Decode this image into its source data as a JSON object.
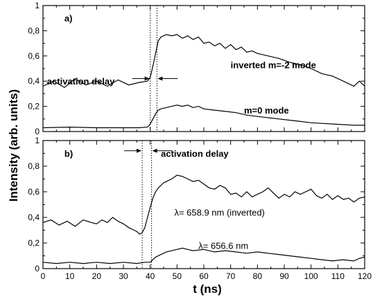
{
  "chart_data": [
    {
      "panel_label": "a)",
      "type": "line",
      "xlim": [
        0,
        120
      ],
      "ylim": [
        0,
        1
      ],
      "y_ticks": [
        0,
        0.2,
        0.4,
        0.6,
        0.8,
        1
      ],
      "y_tick_labels": [
        "0",
        "0,2",
        "0,4",
        "0,6",
        "0,8",
        "1"
      ],
      "vlines": [
        40,
        42.5
      ],
      "annotations": [
        {
          "text": "activation delay",
          "x": 1.5,
          "y": 0.4
        },
        {
          "text": "inverted m=-2 mode",
          "x": 70,
          "y": 0.53
        },
        {
          "text": "m=0 mode",
          "x": 75,
          "y": 0.17
        }
      ],
      "series": [
        {
          "label": "inverted m=-2 mode",
          "x": [
            0,
            4,
            8,
            12,
            16,
            20,
            24,
            28,
            32,
            36,
            39,
            40,
            41,
            42,
            43,
            44,
            46,
            48,
            50,
            52,
            54,
            56,
            58,
            60,
            62,
            64,
            66,
            68,
            70,
            72,
            74,
            76,
            78,
            80,
            84,
            88,
            92,
            96,
            100,
            104,
            108,
            112,
            116,
            118,
            120
          ],
          "y": [
            0.36,
            0.4,
            0.35,
            0.42,
            0.37,
            0.4,
            0.36,
            0.41,
            0.37,
            0.39,
            0.4,
            0.43,
            0.52,
            0.62,
            0.72,
            0.75,
            0.77,
            0.76,
            0.77,
            0.74,
            0.76,
            0.73,
            0.75,
            0.7,
            0.71,
            0.68,
            0.7,
            0.66,
            0.69,
            0.65,
            0.67,
            0.63,
            0.64,
            0.62,
            0.6,
            0.58,
            0.55,
            0.53,
            0.5,
            0.46,
            0.44,
            0.4,
            0.36,
            0.4,
            0.36
          ]
        },
        {
          "label": "m=0 mode",
          "x": [
            0,
            10,
            20,
            30,
            36,
            39,
            40,
            41,
            42,
            43,
            44,
            46,
            48,
            50,
            52,
            54,
            56,
            58,
            60,
            64,
            68,
            72,
            76,
            80,
            84,
            88,
            92,
            96,
            100,
            104,
            108,
            112,
            116,
            120
          ],
          "y": [
            0.03,
            0.035,
            0.03,
            0.03,
            0.03,
            0.035,
            0.06,
            0.1,
            0.14,
            0.17,
            0.18,
            0.19,
            0.2,
            0.21,
            0.2,
            0.21,
            0.19,
            0.2,
            0.18,
            0.17,
            0.16,
            0.15,
            0.13,
            0.12,
            0.11,
            0.1,
            0.09,
            0.08,
            0.07,
            0.065,
            0.06,
            0.055,
            0.05,
            0.05
          ]
        }
      ]
    },
    {
      "panel_label": "b)",
      "type": "line",
      "xlim": [
        0,
        120
      ],
      "ylim": [
        0,
        1
      ],
      "x_ticks": [
        0,
        10,
        20,
        30,
        40,
        50,
        60,
        70,
        80,
        90,
        100,
        110,
        120
      ],
      "y_ticks": [
        0,
        0.2,
        0.4,
        0.6,
        0.8,
        1
      ],
      "y_tick_labels": [
        "0",
        "0,2",
        "0,4",
        "0,6",
        "0,8",
        "1"
      ],
      "xlabel": "t (ns)",
      "vlines": [
        37,
        40.5
      ],
      "annotations": [
        {
          "text": "activation delay",
          "x": 44,
          "y": 0.9
        },
        {
          "text": "λ= 658.9 nm (inverted)",
          "x": 49,
          "y": 0.44
        },
        {
          "text": "λ= 656.6 nm",
          "x": 58,
          "y": 0.18
        }
      ],
      "series": [
        {
          "label": "λ= 658.9 nm (inverted)",
          "x": [
            0,
            3,
            6,
            9,
            12,
            15,
            18,
            20,
            22,
            24,
            26,
            28,
            30,
            32,
            34,
            35,
            36,
            37,
            38,
            39,
            40,
            41,
            42,
            43,
            44,
            45,
            46,
            48,
            50,
            52,
            54,
            56,
            58,
            60,
            62,
            64,
            66,
            68,
            70,
            72,
            74,
            76,
            78,
            80,
            82,
            84,
            86,
            88,
            90,
            92,
            94,
            96,
            98,
            100,
            102,
            104,
            106,
            108,
            110,
            112,
            114,
            116,
            118,
            120
          ],
          "y": [
            0.36,
            0.38,
            0.34,
            0.37,
            0.33,
            0.38,
            0.36,
            0.35,
            0.38,
            0.36,
            0.4,
            0.37,
            0.35,
            0.32,
            0.3,
            0.29,
            0.27,
            0.28,
            0.32,
            0.4,
            0.48,
            0.55,
            0.6,
            0.63,
            0.65,
            0.67,
            0.68,
            0.7,
            0.73,
            0.72,
            0.7,
            0.68,
            0.69,
            0.66,
            0.63,
            0.62,
            0.65,
            0.63,
            0.58,
            0.59,
            0.56,
            0.6,
            0.56,
            0.58,
            0.6,
            0.63,
            0.59,
            0.55,
            0.58,
            0.56,
            0.6,
            0.58,
            0.6,
            0.62,
            0.57,
            0.55,
            0.58,
            0.54,
            0.57,
            0.54,
            0.55,
            0.52,
            0.55,
            0.56
          ]
        },
        {
          "label": "λ= 656.6 nm",
          "x": [
            0,
            5,
            10,
            15,
            20,
            25,
            30,
            35,
            38,
            40,
            41,
            42,
            44,
            46,
            48,
            50,
            52,
            54,
            56,
            60,
            64,
            68,
            72,
            76,
            80,
            84,
            88,
            92,
            96,
            100,
            104,
            108,
            112,
            116,
            118,
            120
          ],
          "y": [
            0.05,
            0.04,
            0.05,
            0.04,
            0.05,
            0.04,
            0.05,
            0.04,
            0.05,
            0.05,
            0.07,
            0.09,
            0.11,
            0.13,
            0.14,
            0.15,
            0.16,
            0.15,
            0.14,
            0.15,
            0.13,
            0.14,
            0.13,
            0.12,
            0.13,
            0.12,
            0.11,
            0.1,
            0.09,
            0.08,
            0.07,
            0.06,
            0.07,
            0.06,
            0.08,
            0.09
          ]
        }
      ]
    }
  ],
  "shared_ylabel": "Intensity (arb. units)"
}
